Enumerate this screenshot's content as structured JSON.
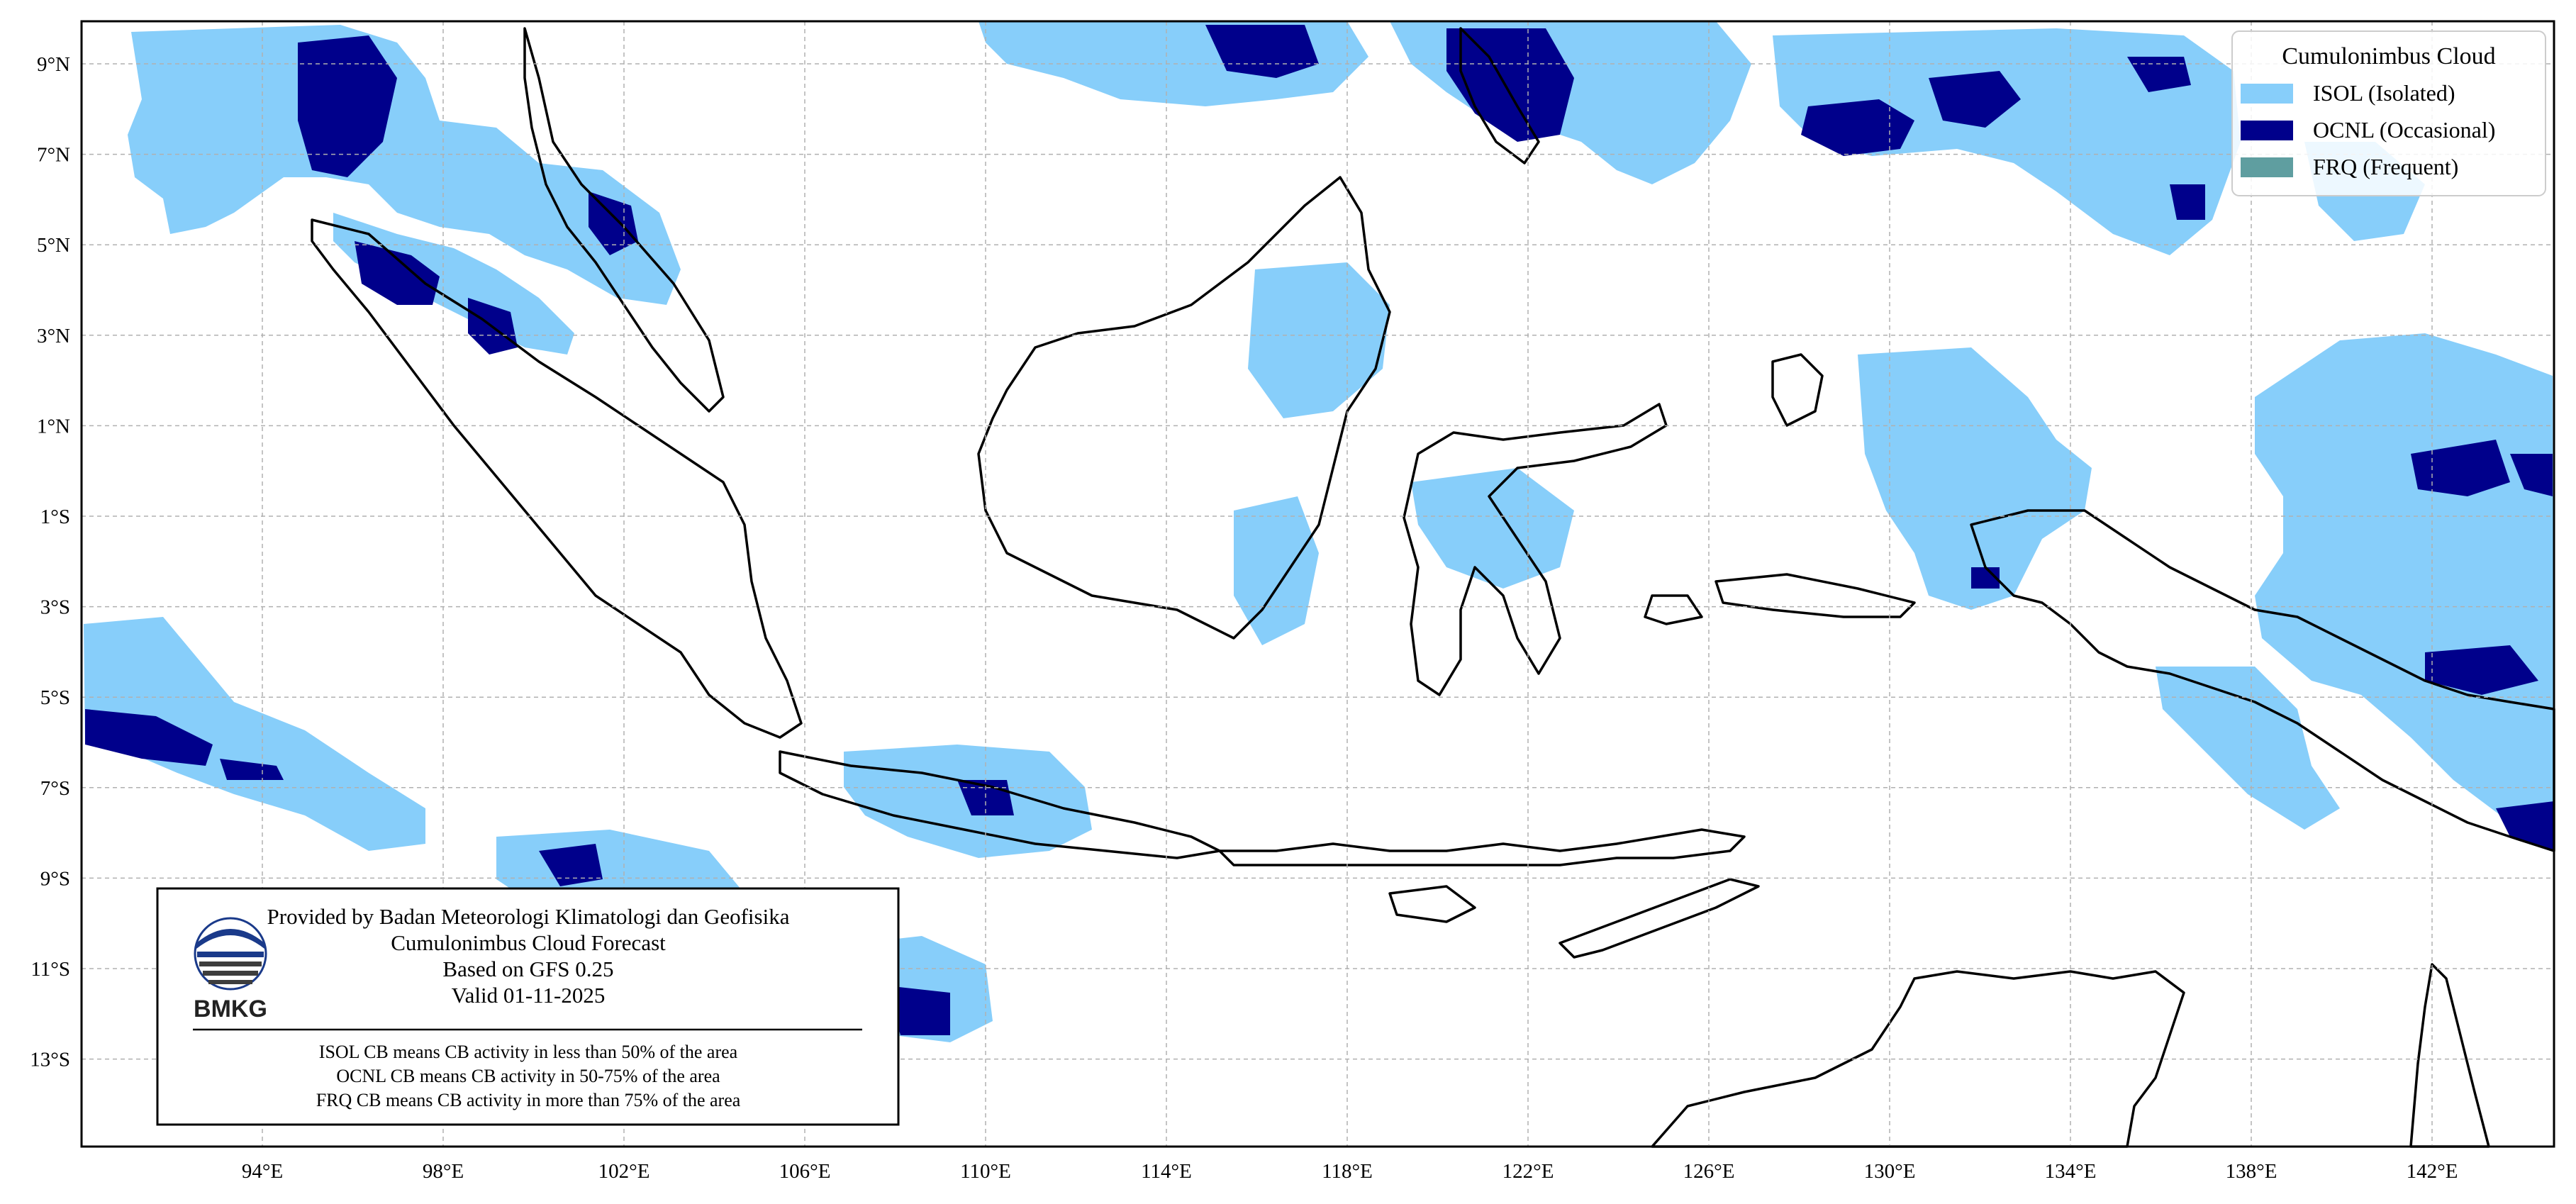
{
  "map": {
    "lon_ticks": [
      "94°E",
      "98°E",
      "102°E",
      "106°E",
      "110°E",
      "114°E",
      "118°E",
      "122°E",
      "126°E",
      "130°E",
      "134°E",
      "138°E",
      "142°E"
    ],
    "lat_ticks": [
      "9°N",
      "7°N",
      "5°N",
      "3°N",
      "1°N",
      "1°S",
      "3°S",
      "5°S",
      "7°S",
      "9°S",
      "11°S",
      "13°S"
    ],
    "colors": {
      "isol": "#87cefa",
      "ocnl": "#00008b",
      "frq": "#5f9ea0",
      "coast": "#000000",
      "grid": "#b0b0b0"
    }
  },
  "legend": {
    "title": "Cumulonimbus Cloud",
    "items": [
      {
        "label": "ISOL (Isolated)",
        "color": "#87cefa"
      },
      {
        "label": "OCNL (Occasional)",
        "color": "#00008b"
      },
      {
        "label": "FRQ (Frequent)",
        "color": "#5f9ea0"
      }
    ]
  },
  "info_box": {
    "provider": "Provided by Badan Meteorologi Klimatologi dan Geofisika",
    "product": "Cumulonimbus Cloud Forecast",
    "model": "Based on GFS 0.25",
    "valid": "Valid 01-11-2025",
    "logo_text": "BMKG",
    "notes": [
      "ISOL CB means CB activity in less than 50% of the area",
      "OCNL CB means CB activity in 50-75% of the area",
      "FRQ CB means CB activity in more than 75% of the area"
    ]
  }
}
